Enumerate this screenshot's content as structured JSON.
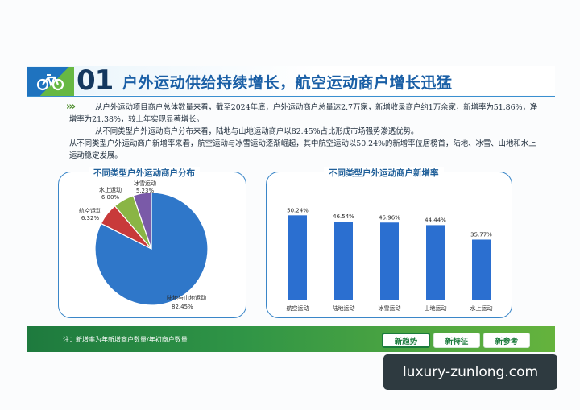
{
  "header": {
    "number": "01",
    "title": "户外运动供给持续增长，航空运动商户增长迅猛"
  },
  "body": {
    "arrows": "›››",
    "p1": "从户外运动项目商户总体数量来看，截至2024年底，户外运动商户总量达2.7万家，新增收录商户约1万余家，新增率为51.86%，净增率为21.38%，较上年实现显著增长。",
    "p2": "从不同类型户外运动商户分布来看，陆地与山地运动商户以82.45%占比形成市场强势渗透优势。",
    "p3": "从不同类型户外运动商户新增率来看，航空运动与冰雪运动逐渐崛起，其中航空运动以50.24%的新增率位居榜首，陆地、冰雪、山地和水上运动稳定发展。"
  },
  "colors": {
    "pie_land": "#2f77c9",
    "pie_air": "#c83a3a",
    "pie_water": "#8ab545",
    "pie_snow": "#7a5aa8",
    "bar": "#2b6fd0",
    "footer_green": "#2f9446"
  },
  "chart_data": [
    {
      "type": "pie",
      "title": "不同类型户外运动商户分布",
      "slices": [
        {
          "name": "陆地与山地运动",
          "label": "82.45%",
          "value": 82.45
        },
        {
          "name": "航空运动",
          "label": "6.32%",
          "value": 6.32
        },
        {
          "name": "水上运动",
          "label": "6.00%",
          "value": 6.0
        },
        {
          "name": "冰雪运动",
          "label": "5.23%",
          "value": 5.23
        }
      ]
    },
    {
      "type": "bar",
      "title": "不同类型户外运动商户新增率",
      "categories": [
        "航空运动",
        "陆地运动",
        "冰雪运动",
        "山地运动",
        "水上运动"
      ],
      "values": [
        50.24,
        46.54,
        45.96,
        44.44,
        35.77
      ],
      "labels": [
        "50.24%",
        "46.54%",
        "45.96%",
        "44.44%",
        "35.77%"
      ]
    }
  ],
  "footer": {
    "note": "注：新增率为年新增商户数量/年初商户数量",
    "tabs": [
      "新趋势",
      "新特征",
      "新参考"
    ]
  },
  "watermark": "luxury-zunlong.com"
}
